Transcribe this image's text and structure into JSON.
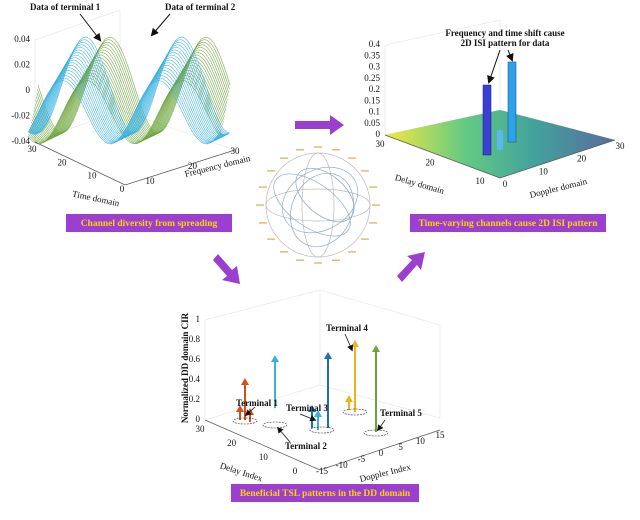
{
  "panels": [
    {
      "annotations": [
        "Data of terminal 1",
        "Data of terminal 2"
      ],
      "zticks": [
        "0.04",
        "0.02",
        "0",
        "-0.02",
        "-0.04"
      ],
      "xticks": [
        "30",
        "20",
        "10",
        "0"
      ],
      "yticks": [
        "10",
        "20",
        "30"
      ],
      "xlabel": "Time domain",
      "ylabel": "Frequency domain",
      "caption": "Channel diversity from spreading"
    },
    {
      "annotation": [
        "Frequency and time shift cause",
        "2D ISI pattern for data"
      ],
      "zticks": [
        "0.4",
        "0.35",
        "0.3",
        "0.25",
        "0.2",
        "0.15",
        "0.1",
        "0.05",
        "0"
      ],
      "xticks": [
        "30",
        "20",
        "10"
      ],
      "yticks": [
        "0",
        "10",
        "20",
        "30"
      ],
      "xlabel": "Delay domain",
      "ylabel": "Doppler domain",
      "caption": "Time-varying channels cause 2D ISI pattern"
    },
    {
      "zlabel": "Normalized DD domain CIR",
      "zticks": [
        "1",
        "0.8",
        "0.6",
        "0.4",
        "0.2",
        "0"
      ],
      "xticks": [
        "30",
        "20",
        "10",
        "0"
      ],
      "yticks": [
        "-15",
        "-10",
        "-5",
        "0",
        "5",
        "10",
        "15"
      ],
      "xlabel": "Delay Index",
      "ylabel": "Doppler Index",
      "terminals": [
        "Terminal 1",
        "Terminal 2",
        "Terminal 3",
        "Terminal 4",
        "Terminal 5"
      ],
      "caption": "Beneficial TSL patterns in the DD domain"
    }
  ]
}
